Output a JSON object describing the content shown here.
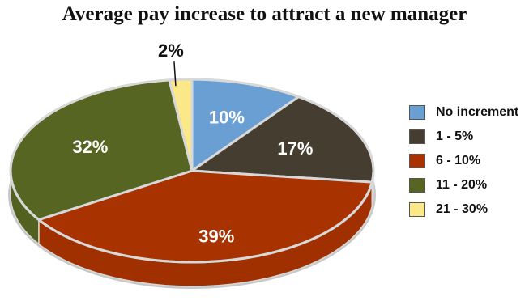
{
  "chart_data": {
    "type": "pie",
    "title": "Average pay increase to attract a new manager",
    "slices": [
      {
        "label": "No increment",
        "value": 10,
        "display": "10%",
        "color": "#6a9fd4",
        "label_color": "#ffffff"
      },
      {
        "label": "1 - 5%",
        "value": 17,
        "display": "17%",
        "color": "#453d30",
        "label_color": "#ffffff"
      },
      {
        "label": "6 - 10%",
        "value": 39,
        "display": "39%",
        "color": "#a83200",
        "label_color": "#ffffff"
      },
      {
        "label": "11 - 20%",
        "value": 32,
        "display": "32%",
        "color": "#566522",
        "label_color": "#ffffff"
      },
      {
        "label": "21 - 30%",
        "value": 2,
        "display": "2%",
        "color": "#fbe889",
        "label_color": "#111111"
      }
    ],
    "legend_position": "right",
    "style": "3d-tilted"
  }
}
